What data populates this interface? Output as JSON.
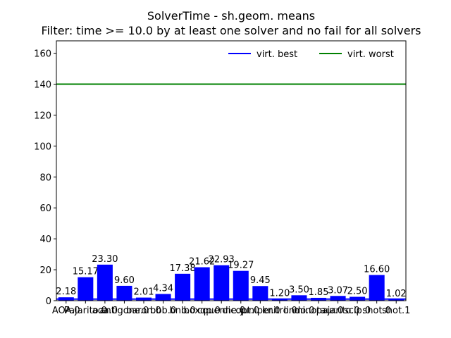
{
  "chart_data": {
    "type": "bar",
    "title": "SolverTime - sh.geom. means",
    "subtitle": "Filter: time >= 10.0 by at least one solver and no fail for all solvers",
    "xlabel": "",
    "ylabel": "",
    "ylim": [
      0,
      168
    ],
    "yticks": [
      0,
      20,
      40,
      60,
      80,
      100,
      120,
      140,
      160
    ],
    "grid": false,
    "legend_position": "top-right",
    "categories": [
      "AOA.0",
      "Pajarito.0",
      "aoa.0",
      "antigone.0",
      "baron.0",
      "bbb.0",
      "bnb.0",
      "boxqp.0",
      "couenne.0",
      "dicopt.0",
      "juniper.0",
      "knitro.0",
      "lindo.0",
      "minotaur.0",
      "pajarito.0",
      "scip.0",
      "shot.0",
      "shot.1"
    ],
    "series": [
      {
        "name": "",
        "color": "#0000ff",
        "values": [
          2.18,
          15.17,
          23.3,
          9.6,
          2.01,
          4.34,
          17.38,
          21.62,
          22.93,
          19.27,
          9.45,
          1.2,
          3.5,
          1.85,
          3.07,
          2.5,
          16.6,
          1.02
        ],
        "labels": [
          "2.18",
          "15.17",
          "23.30",
          "9.60",
          "2.01",
          "4.34",
          "17.38",
          "21.62",
          "22.93",
          "19.27",
          "9.45",
          "1.20",
          "3.50",
          "1.85",
          "3.07",
          "2.50",
          "16.60",
          "1.02"
        ]
      }
    ],
    "reference_lines": [
      {
        "name": "virt. best",
        "value": 1.02,
        "color": "#0000ff"
      },
      {
        "name": "virt. worst",
        "value": 140,
        "color": "#008000"
      }
    ]
  }
}
